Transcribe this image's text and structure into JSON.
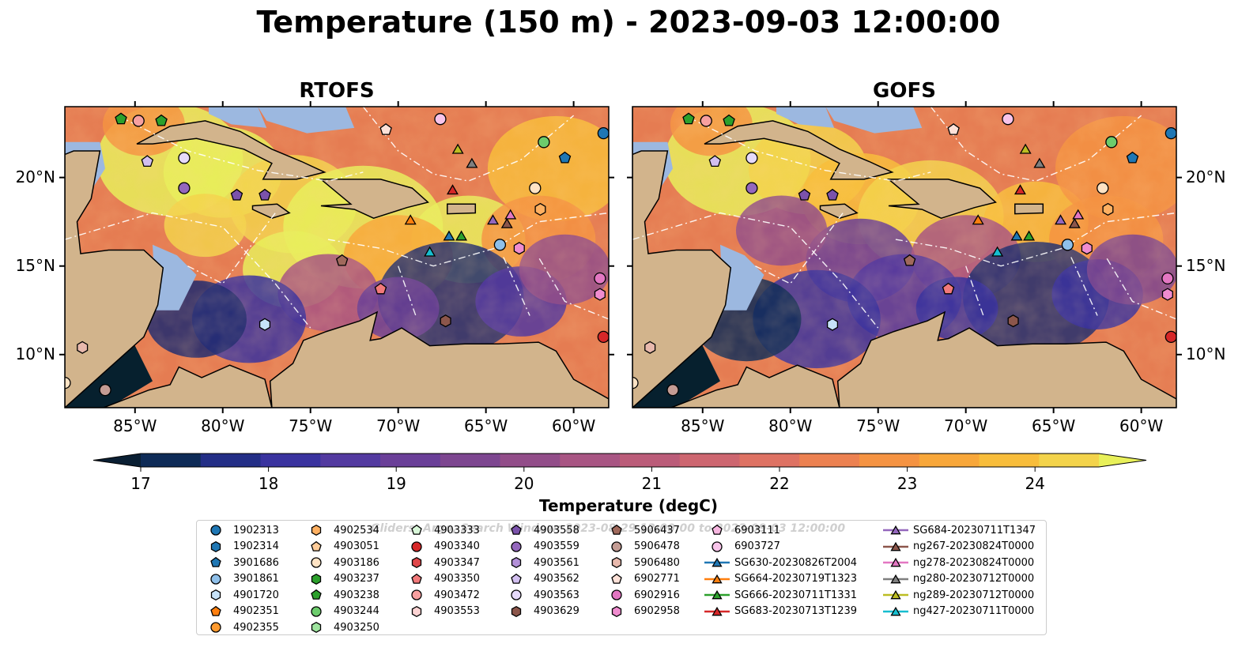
{
  "figure": {
    "title": "Temperature (150 m) - 2023-09-03 12:00:00",
    "panels": [
      {
        "title": "RTOFS"
      },
      {
        "title": "GOFS"
      }
    ],
    "x_ticks": [
      "85°W",
      "80°W",
      "75°W",
      "70°W",
      "65°W",
      "60°W"
    ],
    "y_ticks": [
      "20°N",
      "15°N",
      "10°N"
    ],
    "colorbar": {
      "label": "Temperature (degC)",
      "ticks": [
        "17",
        "18",
        "19",
        "20",
        "21",
        "22",
        "23",
        "24"
      ],
      "colors": [
        "#0a1f33",
        "#0e2b57",
        "#232e86",
        "#3a339f",
        "#533aa0",
        "#6a3f98",
        "#7d4690",
        "#924d89",
        "#a85583",
        "#bb5c79",
        "#cd6670",
        "#de7263",
        "#ec8151",
        "#f59342",
        "#f8a73a",
        "#f8bd3b",
        "#f3d34b",
        "#e8f05a"
      ]
    },
    "legend_watermark": "Gliders, Argo, Search Window: 2023-08-29 12:00:00 to 2023-09-03 12:00:00",
    "legend": [
      {
        "label": "1902313",
        "marker": "circle",
        "color": "#1f77b4"
      },
      {
        "label": "1902314",
        "marker": "hexagon",
        "color": "#1f77b4"
      },
      {
        "label": "3901686",
        "marker": "pentagon",
        "color": "#1f77b4"
      },
      {
        "label": "3901861",
        "marker": "circle",
        "color": "#8fc0ea"
      },
      {
        "label": "4901720",
        "marker": "hexagon",
        "color": "#c6e2f8"
      },
      {
        "label": "4902351",
        "marker": "pentagon",
        "color": "#ff7f0e"
      },
      {
        "label": "4902355",
        "marker": "circle",
        "color": "#ff9a2e"
      },
      {
        "label": "4902534",
        "marker": "hexagon",
        "color": "#ffb061"
      },
      {
        "label": "4903051",
        "marker": "pentagon",
        "color": "#ffcc99"
      },
      {
        "label": "4903186",
        "marker": "circle",
        "color": "#ffe3c4"
      },
      {
        "label": "4903237",
        "marker": "hexagon",
        "color": "#2ca02c"
      },
      {
        "label": "4903238",
        "marker": "pentagon",
        "color": "#2ca02c"
      },
      {
        "label": "4903244",
        "marker": "circle",
        "color": "#6ccc6c"
      },
      {
        "label": "4903250",
        "marker": "hexagon",
        "color": "#9ee49e"
      },
      {
        "label": "4903333",
        "marker": "pentagon",
        "color": "#d9f7d9"
      },
      {
        "label": "4903340",
        "marker": "circle",
        "color": "#d62728"
      },
      {
        "label": "4903347",
        "marker": "hexagon",
        "color": "#e0474a"
      },
      {
        "label": "4903350",
        "marker": "pentagon",
        "color": "#f2797a"
      },
      {
        "label": "4903472",
        "marker": "circle",
        "color": "#f7a0a0"
      },
      {
        "label": "4903553",
        "marker": "hexagon",
        "color": "#fcd3d3"
      },
      {
        "label": "4903558",
        "marker": "pentagon",
        "color": "#7b52ab"
      },
      {
        "label": "4903559",
        "marker": "circle",
        "color": "#9467bd"
      },
      {
        "label": "4903561",
        "marker": "hexagon",
        "color": "#b390d8"
      },
      {
        "label": "4903562",
        "marker": "pentagon",
        "color": "#d2bff0"
      },
      {
        "label": "4903563",
        "marker": "circle",
        "color": "#e6dafa"
      },
      {
        "label": "4903629",
        "marker": "hexagon",
        "color": "#8c564b"
      },
      {
        "label": "5906437",
        "marker": "pentagon",
        "color": "#a0695c"
      },
      {
        "label": "5906478",
        "marker": "circle",
        "color": "#c49c94"
      },
      {
        "label": "5906480",
        "marker": "hexagon",
        "color": "#e8b9ad"
      },
      {
        "label": "6902771",
        "marker": "pentagon",
        "color": "#fde1d8"
      },
      {
        "label": "6902916",
        "marker": "circle",
        "color": "#e377c2"
      },
      {
        "label": "6902958",
        "marker": "hexagon",
        "color": "#f08ccf"
      },
      {
        "label": "6903111",
        "marker": "pentagon",
        "color": "#f7b6e0"
      },
      {
        "label": "6903727",
        "marker": "circle",
        "color": "#f8c4ea"
      },
      {
        "label": "SG630-20230826T2004",
        "marker": "triangle-line",
        "color": "#1f77b4"
      },
      {
        "label": "SG664-20230719T1323",
        "marker": "triangle-line",
        "color": "#ff7f0e"
      },
      {
        "label": "SG666-20230711T1331",
        "marker": "triangle-line",
        "color": "#2ca02c"
      },
      {
        "label": "SG683-20230713T1239",
        "marker": "triangle-line",
        "color": "#d62728"
      },
      {
        "label": "SG684-20230711T1347",
        "marker": "triangle-line",
        "color": "#9467bd"
      },
      {
        "label": "ng267-20230824T0000",
        "marker": "triangle-line",
        "color": "#8c564b"
      },
      {
        "label": "ng278-20230824T0000",
        "marker": "triangle-line",
        "color": "#e377c2"
      },
      {
        "label": "ng280-20230712T0000",
        "marker": "triangle-line",
        "color": "#7f7f7f"
      },
      {
        "label": "ng289-20230712T0000",
        "marker": "triangle-line",
        "color": "#bcbd22"
      },
      {
        "label": "ng427-20230711T0000",
        "marker": "triangle-line",
        "color": "#17becf"
      }
    ]
  },
  "chart_data": {
    "type": "heatmap",
    "title": "Temperature (150 m) - 2023-09-03 12:00:00",
    "panels": [
      "RTOFS",
      "GOFS"
    ],
    "variable": "Temperature (degC)",
    "depth": "150 m",
    "time": "2023-09-03 12:00:00",
    "xlim": [
      -89,
      -58
    ],
    "ylim": [
      7,
      24
    ],
    "color_range": [
      17,
      24.5
    ],
    "x_ticks": [
      -85,
      -80,
      -75,
      -70,
      -65,
      -60
    ],
    "y_ticks": [
      20,
      15,
      10
    ],
    "observations": [
      {
        "id": "1902313",
        "lon": -58.3,
        "lat": 22.5
      },
      {
        "id": "3901686",
        "lon": -60.5,
        "lat": 21.1
      },
      {
        "id": "4903244",
        "lon": -61.7,
        "lat": 22.0
      },
      {
        "id": "4903186",
        "lon": -62.2,
        "lat": 19.4
      },
      {
        "id": "4902534",
        "lon": -61.9,
        "lat": 18.2
      },
      {
        "id": "3901861",
        "lon": -64.2,
        "lat": 16.2
      },
      {
        "id": "6902958",
        "lon": -63.1,
        "lat": 16.0
      },
      {
        "id": "6902916",
        "lon": -58.5,
        "lat": 14.3
      },
      {
        "id": "6902958b",
        "lon": -58.5,
        "lat": 13.4
      },
      {
        "id": "4903340",
        "lon": -58.3,
        "lat": 11.0
      },
      {
        "id": "5906437",
        "lon": -73.2,
        "lat": 15.3
      },
      {
        "id": "4903350",
        "lon": -71.0,
        "lat": 13.7
      },
      {
        "id": "4901720",
        "lon": -77.6,
        "lat": 11.7
      },
      {
        "id": "4903629",
        "lon": -67.3,
        "lat": 11.9
      },
      {
        "id": "4903559",
        "lon": -82.2,
        "lat": 19.4
      },
      {
        "id": "4903558",
        "lon": -79.2,
        "lat": 19.0
      },
      {
        "id": "4903558b",
        "lon": -77.6,
        "lat": 19.0
      },
      {
        "id": "4903562",
        "lon": -84.3,
        "lat": 20.9
      },
      {
        "id": "4903563",
        "lon": -82.2,
        "lat": 21.1
      },
      {
        "id": "6903727",
        "lon": -67.6,
        "lat": 23.3
      },
      {
        "id": "6902771",
        "lon": -70.7,
        "lat": 22.7
      },
      {
        "id": "4903238",
        "lon": -85.8,
        "lat": 23.3
      },
      {
        "id": "4903238b",
        "lon": -83.5,
        "lat": 23.2
      },
      {
        "id": "4903472",
        "lon": -84.8,
        "lat": 23.2
      },
      {
        "id": "5906478",
        "lon": -86.7,
        "lat": 8.0
      },
      {
        "id": "4903186b",
        "lon": -89.0,
        "lat": 8.4
      },
      {
        "id": "5906480",
        "lon": -88.0,
        "lat": 10.4
      },
      {
        "id": "SG630-20230826T2004",
        "lon": -67.1,
        "lat": 16.7
      },
      {
        "id": "SG664-20230719T1323",
        "lon": -69.3,
        "lat": 17.6
      },
      {
        "id": "SG666-20230711T1331",
        "lon": -66.4,
        "lat": 16.7
      },
      {
        "id": "SG683-20230713T1239",
        "lon": -66.9,
        "lat": 19.3
      },
      {
        "id": "SG684-20230711T1347",
        "lon": -64.6,
        "lat": 17.6
      },
      {
        "id": "ng267-20230824T0000",
        "lon": -63.8,
        "lat": 17.4
      },
      {
        "id": "ng278-20230824T0000",
        "lon": -63.6,
        "lat": 17.9
      },
      {
        "id": "ng280-20230712T0000",
        "lon": -65.8,
        "lat": 20.8
      },
      {
        "id": "ng289-20230712T0000",
        "lon": -66.6,
        "lat": 21.6
      },
      {
        "id": "ng427-20230711T0000",
        "lon": -68.2,
        "lat": 15.8
      }
    ]
  }
}
